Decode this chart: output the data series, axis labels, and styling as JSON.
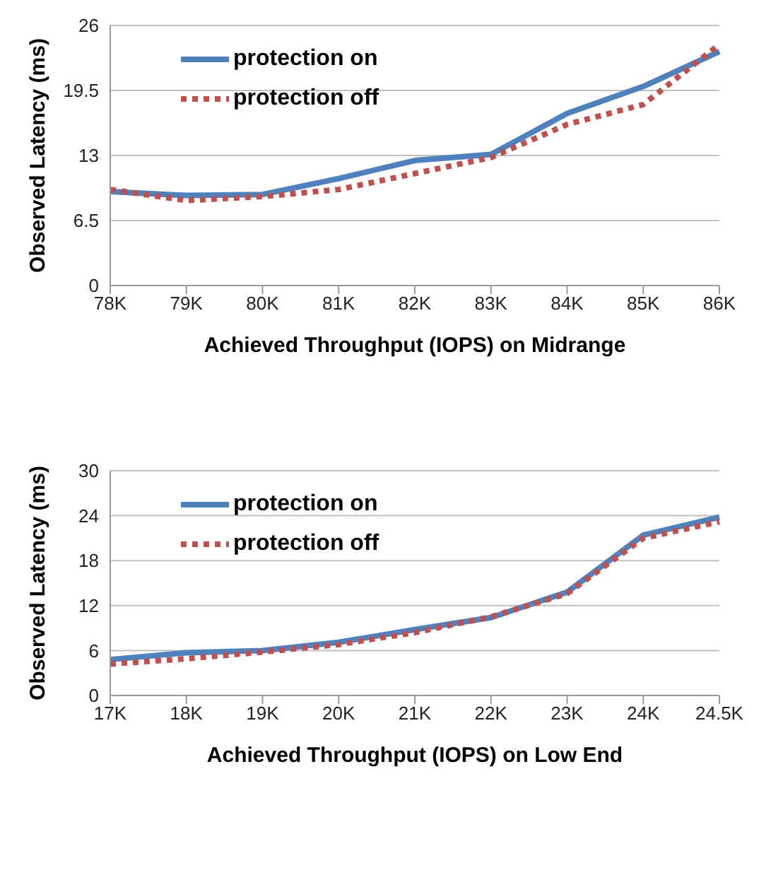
{
  "chart_data": [
    {
      "type": "line",
      "xlabel": "Achieved Throughput (IOPS) on Midrange",
      "ylabel": "Observed Latency (ms)",
      "categories": [
        "78K",
        "79K",
        "80K",
        "81K",
        "82K",
        "83K",
        "84K",
        "85K",
        "86K"
      ],
      "ylim": [
        0,
        26
      ],
      "yticks": [
        0,
        6.5,
        13,
        19.5,
        26
      ],
      "grid": "y",
      "legend": "top left",
      "marker": "none",
      "series": [
        {
          "name": "protection on",
          "color": "#4f81bd",
          "line_style": "solid",
          "values": [
            9.4,
            9.0,
            9.1,
            10.7,
            12.5,
            13.1,
            17.2,
            19.9,
            23.4
          ]
        },
        {
          "name": "protection off",
          "color": "#c0504d",
          "line_style": "dotted",
          "values": [
            9.6,
            8.5,
            8.9,
            9.6,
            11.2,
            12.8,
            16.1,
            18.1,
            24.1
          ]
        }
      ]
    },
    {
      "type": "line",
      "xlabel": "Achieved Throughput (IOPS) on Low End",
      "ylabel": "Observed Latency (ms)",
      "categories": [
        "17K",
        "18K",
        "19K",
        "20K",
        "21K",
        "22K",
        "23K",
        "24K",
        "24.5K"
      ],
      "ylim": [
        0,
        30
      ],
      "yticks": [
        0,
        6,
        12,
        18,
        24,
        30
      ],
      "grid": "y",
      "legend": "top left",
      "marker": "none",
      "series": [
        {
          "name": "protection on",
          "color": "#4f81bd",
          "line_style": "solid",
          "values": [
            4.8,
            5.7,
            6.0,
            7.1,
            8.8,
            10.4,
            13.8,
            21.4,
            23.8
          ]
        },
        {
          "name": "protection off",
          "color": "#c0504d",
          "line_style": "dotted",
          "values": [
            4.2,
            4.9,
            5.8,
            6.8,
            8.4,
            10.5,
            13.6,
            21.0,
            23.2
          ]
        }
      ]
    }
  ]
}
